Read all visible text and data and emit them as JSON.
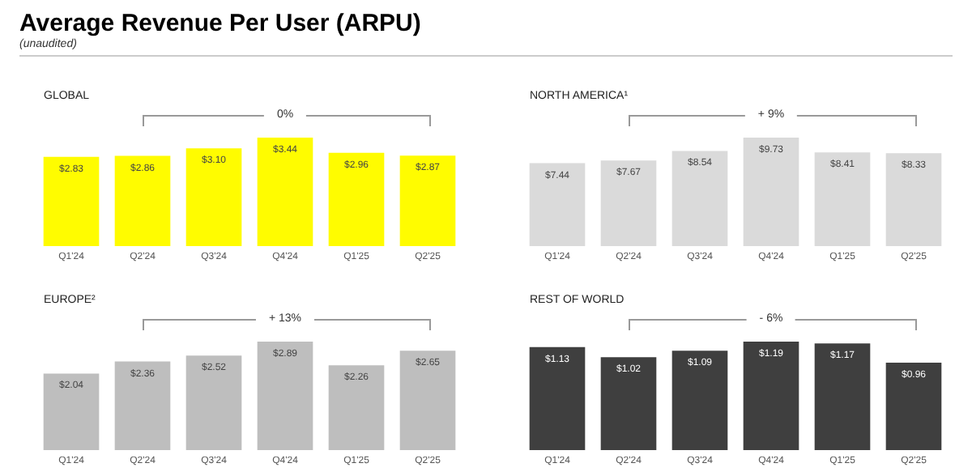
{
  "chart_data": [
    {
      "type": "other",
      "title": "Average Revenue Per User (ARPU)",
      "subtitle": "(unaudited)"
    },
    {
      "type": "bar",
      "title": "GLOBAL",
      "categories": [
        "Q1'24",
        "Q2'24",
        "Q3'24",
        "Q4'24",
        "Q1'25",
        "Q2'25"
      ],
      "values": [
        2.83,
        2.86,
        3.1,
        3.44,
        2.96,
        2.87
      ],
      "value_labels": [
        "$2.83",
        "$2.86",
        "$3.10",
        "$3.44",
        "$2.96",
        "$2.87"
      ],
      "color": "#fffc00",
      "annotations": [
        "0%"
      ]
    },
    {
      "type": "bar",
      "title": "NORTH AMERICA¹",
      "categories": [
        "Q1'24",
        "Q2'24",
        "Q3'24",
        "Q4'24",
        "Q1'25",
        "Q2'25"
      ],
      "values": [
        7.44,
        7.67,
        8.54,
        9.73,
        8.41,
        8.33
      ],
      "value_labels": [
        "$7.44",
        "$7.67",
        "$8.54",
        "$9.73",
        "$8.41",
        "$8.33"
      ],
      "color": "#dadada",
      "annotations": [
        "+ 9%"
      ]
    },
    {
      "type": "bar",
      "title": "EUROPE²",
      "categories": [
        "Q1'24",
        "Q2'24",
        "Q3'24",
        "Q4'24",
        "Q1'25",
        "Q2'25"
      ],
      "values": [
        2.04,
        2.36,
        2.52,
        2.89,
        2.26,
        2.65
      ],
      "value_labels": [
        "$2.04",
        "$2.36",
        "$2.52",
        "$2.89",
        "$2.26",
        "$2.65"
      ],
      "color": "#bebebe",
      "annotations": [
        "+ 13%"
      ]
    },
    {
      "type": "bar",
      "title": "REST OF WORLD",
      "categories": [
        "Q1'24",
        "Q2'24",
        "Q3'24",
        "Q4'24",
        "Q1'25",
        "Q2'25"
      ],
      "values": [
        1.13,
        1.02,
        1.09,
        1.19,
        1.17,
        0.96
      ],
      "value_labels": [
        "$1.13",
        "$1.02",
        "$1.09",
        "$1.19",
        "$1.17",
        "$0.96"
      ],
      "color": "#3f3f3f",
      "annotations": [
        "- 6%"
      ]
    }
  ]
}
